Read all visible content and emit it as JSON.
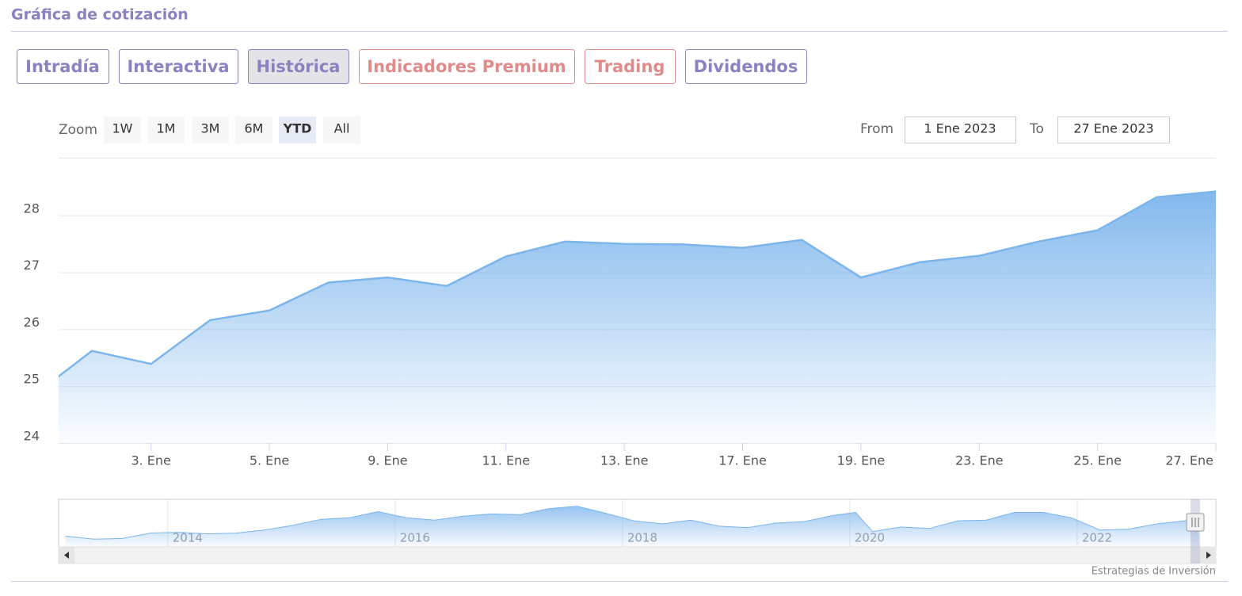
{
  "header": {
    "title": "Gráfica de cotización"
  },
  "tabs": [
    {
      "label": "Intradía",
      "color": "#8c82c2",
      "active": false
    },
    {
      "label": "Interactiva",
      "color": "#8c82c2",
      "active": false
    },
    {
      "label": "Histórica",
      "color": "#8c82c2",
      "active": true
    },
    {
      "label": "Indicadores Premium",
      "color": "#e08a8a",
      "active": false
    },
    {
      "label": "Trading",
      "color": "#e08a8a",
      "active": false
    },
    {
      "label": "Dividendos",
      "color": "#8c82c2",
      "active": false
    }
  ],
  "range_selector": {
    "zoom_label": "Zoom",
    "buttons": [
      {
        "label": "1W",
        "active": false
      },
      {
        "label": "1M",
        "active": false
      },
      {
        "label": "3M",
        "active": false
      },
      {
        "label": "6M",
        "active": false
      },
      {
        "label": "YTD",
        "active": true
      },
      {
        "label": "All",
        "active": false
      }
    ],
    "from_label": "From",
    "from": "1 Ene 2023",
    "to_label": "To",
    "to": "27 Ene 2023"
  },
  "chart_data": {
    "type": "area",
    "color": "#7cb5ec",
    "categories": [
      null,
      null,
      "3. Ene",
      null,
      "5. Ene",
      null,
      "9. Ene",
      null,
      "11. Ene",
      null,
      "13. Ene",
      null,
      "17. Ene",
      null,
      "19. Ene",
      null,
      "23. Ene",
      null,
      "25. Ene",
      null,
      "27. Ene"
    ],
    "values": [
      24.82,
      25.62,
      25.39,
      26.16,
      26.33,
      26.82,
      26.91,
      26.76,
      27.28,
      27.54,
      27.5,
      27.49,
      27.43,
      27.57,
      26.91,
      27.18,
      27.29,
      27.54,
      27.74,
      28.32,
      28.42
    ],
    "ylim": [
      24,
      29
    ],
    "yticks": [
      24,
      25,
      26,
      27,
      28
    ],
    "grid": true,
    "navigator": {
      "x": [
        2013.1,
        2013.35,
        2013.6,
        2013.85,
        2014.1,
        2014.35,
        2014.6,
        2014.85,
        2015.1,
        2015.35,
        2015.6,
        2015.85,
        2016.1,
        2016.35,
        2016.6,
        2016.85,
        2017.1,
        2017.35,
        2017.6,
        2017.85,
        2018.1,
        2018.35,
        2018.6,
        2018.85,
        2019.1,
        2019.35,
        2019.6,
        2019.85,
        2020.05,
        2020.2,
        2020.45,
        2020.7,
        2020.95,
        2021.2,
        2021.45,
        2021.7,
        2021.95,
        2022.2,
        2022.45,
        2022.7,
        2022.95,
        2023.07
      ],
      "values": [
        18.5,
        17.5,
        17.75,
        19.5,
        19.75,
        19.25,
        19.5,
        20.5,
        22,
        24,
        24.5,
        26.5,
        24.5,
        23.75,
        25,
        25.75,
        25.5,
        27.5,
        28.25,
        26,
        23.5,
        22.5,
        23.75,
        21.75,
        21.25,
        22.75,
        23.25,
        25.25,
        26.25,
        20,
        21.5,
        21,
        23.5,
        23.75,
        26.25,
        26.25,
        24.5,
        20.5,
        20.75,
        22.5,
        23.5,
        23.75
      ],
      "xlim": [
        2013.04,
        2023.22
      ],
      "ylim": [
        15,
        30
      ],
      "xticks": [
        2014,
        2016,
        2018,
        2020,
        2022
      ]
    }
  },
  "footer": {
    "credit": "Estrategias de Inversión"
  }
}
